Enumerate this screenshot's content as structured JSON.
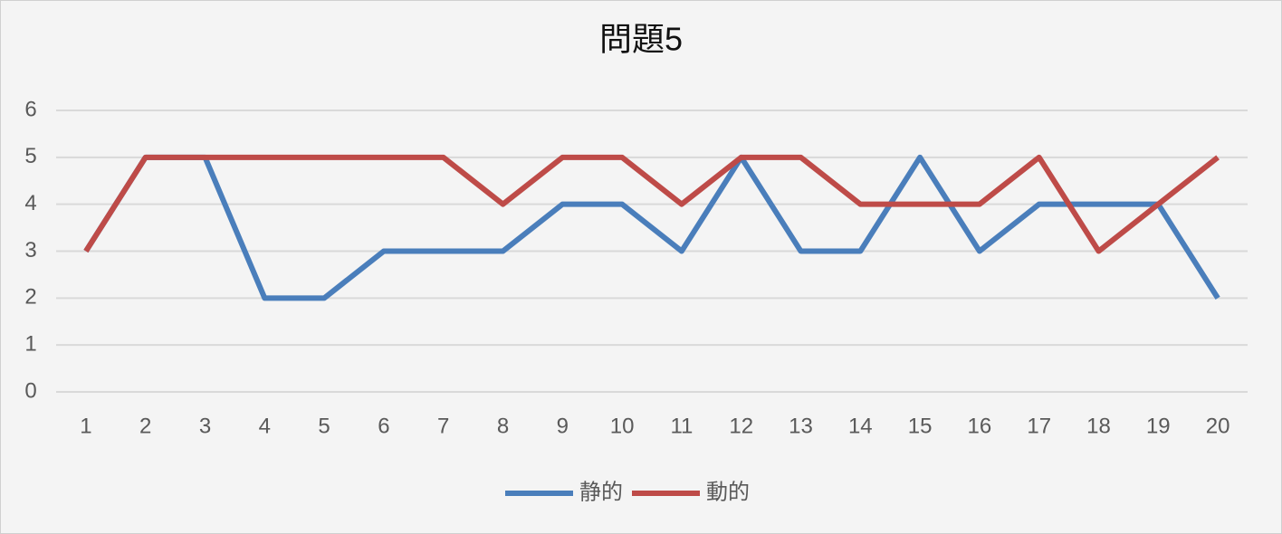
{
  "chart_data": {
    "type": "line",
    "title": "問題5",
    "categories": [
      "1",
      "2",
      "3",
      "4",
      "5",
      "6",
      "7",
      "8",
      "9",
      "10",
      "11",
      "12",
      "13",
      "14",
      "15",
      "16",
      "17",
      "18",
      "19",
      "20"
    ],
    "series": [
      {
        "name": "静的",
        "color": "#4a7ebb",
        "values": [
          3,
          5,
          5,
          2,
          2,
          3,
          3,
          3,
          4,
          4,
          3,
          5,
          3,
          3,
          5,
          3,
          4,
          4,
          4,
          2
        ]
      },
      {
        "name": "動的",
        "color": "#be4b48",
        "values": [
          3,
          5,
          5,
          5,
          5,
          5,
          5,
          4,
          5,
          5,
          4,
          5,
          5,
          4,
          4,
          4,
          5,
          3,
          4,
          5
        ]
      }
    ],
    "ylim": [
      0,
      6
    ],
    "yticks": [
      0,
      1,
      2,
      3,
      4,
      5,
      6
    ],
    "grid": true,
    "legend": "bottom"
  }
}
